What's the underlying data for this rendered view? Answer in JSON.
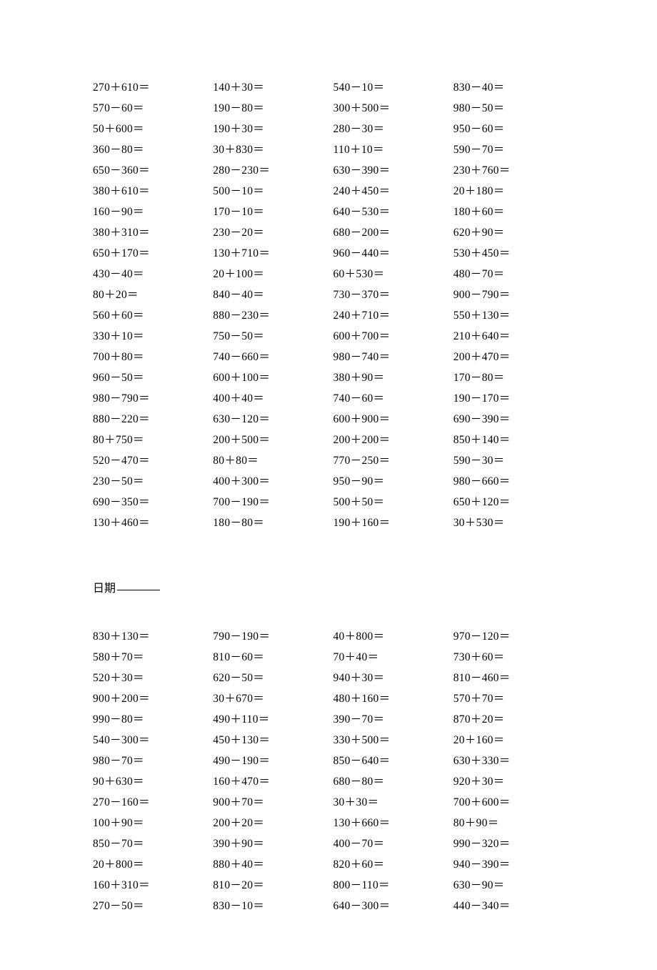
{
  "section1": {
    "rows": [
      [
        "270＋610＝",
        "140＋30＝",
        "540－10＝",
        "830－40＝"
      ],
      [
        "570－60＝",
        "190－80＝",
        "300＋500＝",
        "980－50＝"
      ],
      [
        "50＋600＝",
        "190＋30＝",
        "280－30＝",
        "950－60＝"
      ],
      [
        "360－80＝",
        "30＋830＝",
        "110＋10＝",
        "590－70＝"
      ],
      [
        "650－360＝",
        "280－230＝",
        "630－390＝",
        "230＋760＝"
      ],
      [
        "380＋610＝",
        "500－10＝",
        "240＋450＝",
        "20＋180＝"
      ],
      [
        "160－90＝",
        "170－10＝",
        "640－530＝",
        "180＋60＝"
      ],
      [
        "380＋310＝",
        "230－20＝",
        "680－200＝",
        "620＋90＝"
      ],
      [
        "650＋170＝",
        "130＋710＝",
        "960－440＝",
        "530＋450＝"
      ],
      [
        "430－40＝",
        "20＋100＝",
        "60＋530＝",
        "480－70＝"
      ],
      [
        "80＋20＝",
        "840－40＝",
        "730－370＝",
        "900－790＝"
      ],
      [
        "560＋60＝",
        "880－230＝",
        "240＋710＝",
        "550＋130＝"
      ],
      [
        "330＋10＝",
        "750－50＝",
        "600＋700＝",
        "210＋640＝"
      ],
      [
        "700＋80＝",
        "740－660＝",
        "980－740＝",
        "200＋470＝"
      ],
      [
        "960－50＝",
        "600＋100＝",
        "380＋90＝",
        "170－80＝"
      ],
      [
        "980－790＝",
        "400＋40＝",
        "740－60＝",
        "190－170＝"
      ],
      [
        "880－220＝",
        "630－120＝",
        "600＋900＝",
        "690－390＝"
      ],
      [
        "80＋750＝",
        "200＋500＝",
        "200＋200＝",
        "850＋140＝"
      ],
      [
        "520－470＝",
        "80＋80＝",
        "770－250＝",
        "590－30＝"
      ],
      [
        "230－50＝",
        "400＋300＝",
        "950－90＝",
        "980－660＝"
      ],
      [
        "690－350＝",
        "700－190＝",
        "500＋50＝",
        "650＋120＝"
      ],
      [
        "130＋460＝",
        "180－80＝",
        "190＋160＝",
        "30＋530＝"
      ]
    ]
  },
  "date_label": "日期",
  "section2": {
    "rows": [
      [
        "830＋130＝",
        "790－190＝",
        "40＋800＝",
        "970－120＝"
      ],
      [
        "580＋70＝",
        "810－60＝",
        "70＋40＝",
        "730＋60＝"
      ],
      [
        "520＋30＝",
        "620－50＝",
        "940＋30＝",
        "810－460＝"
      ],
      [
        "900＋200＝",
        "30＋670＝",
        "480＋160＝",
        "570＋70＝"
      ],
      [
        "990－80＝",
        "490＋110＝",
        "390－70＝",
        "870＋20＝"
      ],
      [
        "540－300＝",
        "450＋130＝",
        "330＋500＝",
        "20＋160＝"
      ],
      [
        "980－70＝",
        "490－190＝",
        "850－640＝",
        "630＋330＝"
      ],
      [
        "90＋630＝",
        "160＋470＝",
        "680－80＝",
        "920＋30＝"
      ],
      [
        "270－160＝",
        "900＋70＝",
        "30＋30＝",
        "700＋600＝"
      ],
      [
        "100＋90＝",
        "200＋20＝",
        "130＋660＝",
        "80＋90＝"
      ],
      [
        "850－70＝",
        "390＋90＝",
        "400－70＝",
        "990－320＝"
      ],
      [
        "20＋800＝",
        "880＋40＝",
        "820＋60＝",
        "940－390＝"
      ],
      [
        "160＋310＝",
        "810－20＝",
        "800－110＝",
        "630－90＝"
      ],
      [
        "270－50＝",
        "830－10＝",
        "640－300＝",
        "440－340＝"
      ]
    ]
  }
}
